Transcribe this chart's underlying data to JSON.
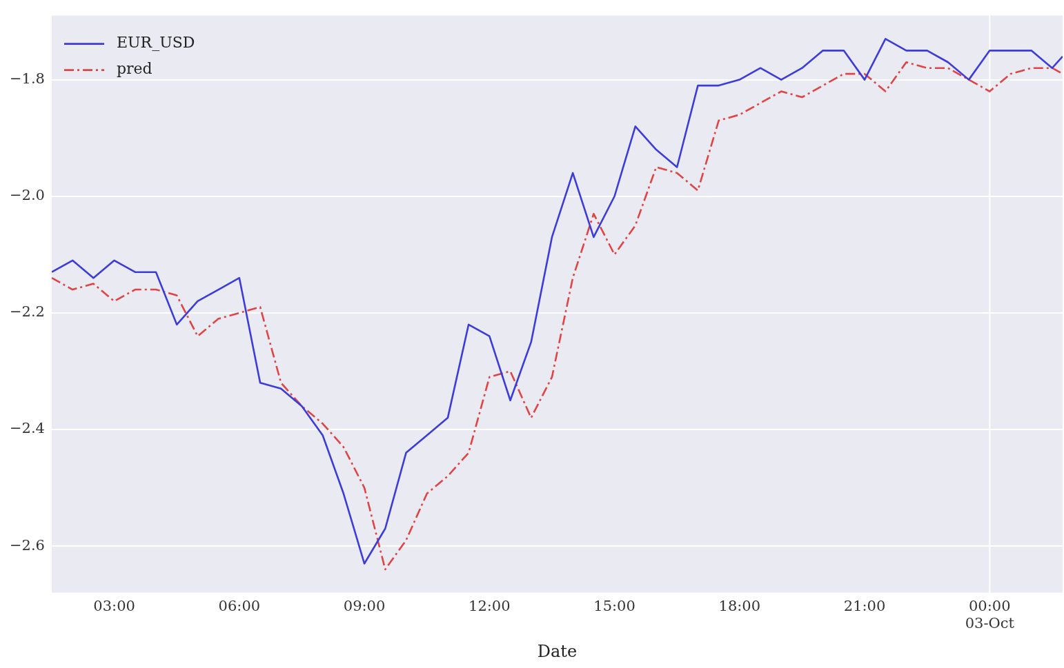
{
  "chart_data": {
    "type": "line",
    "xlabel": "Date",
    "legend": "top left",
    "grid": "y",
    "x": [
      1.5,
      2,
      2.5,
      3,
      3.5,
      4,
      4.5,
      5,
      5.5,
      6,
      6.5,
      7,
      7.5,
      8,
      8.5,
      9,
      9.5,
      10,
      10.5,
      11,
      11.5,
      12,
      12.5,
      13,
      13.5,
      14,
      14.5,
      15,
      15.5,
      16,
      16.5,
      17,
      17.5,
      18,
      18.5,
      19,
      19.5,
      20,
      20.5,
      21,
      21.5,
      22,
      22.5,
      23,
      23.5,
      24,
      24.5,
      25,
      25.5,
      25.75
    ],
    "xlim": [
      1.5,
      25.75
    ],
    "xticks": [
      {
        "value": 3,
        "label": "03:00"
      },
      {
        "value": 6,
        "label": "06:00"
      },
      {
        "value": 9,
        "label": "09:00"
      },
      {
        "value": 12,
        "label": "12:00"
      },
      {
        "value": 15,
        "label": "15:00"
      },
      {
        "value": 18,
        "label": "18:00"
      },
      {
        "value": 21,
        "label": "21:00"
      },
      {
        "value": 24,
        "label": "00:00\n03-Oct"
      }
    ],
    "ylim": [
      -2.68,
      -1.69
    ],
    "yticks": [
      {
        "value": -2.6,
        "label": "−2.6"
      },
      {
        "value": -2.4,
        "label": "−2.4"
      },
      {
        "value": -2.2,
        "label": "−2.2"
      },
      {
        "value": -2.0,
        "label": "−2.0"
      },
      {
        "value": -1.8,
        "label": "−1.8"
      }
    ],
    "ref_lines": [
      {
        "axis": "x",
        "value": 24,
        "color": "#ffffff"
      }
    ],
    "series": [
      {
        "name": "EUR_USD",
        "color": "#3c3cdc",
        "line_style": "solid",
        "values": [
          -2.13,
          -2.11,
          -2.14,
          -2.11,
          -2.13,
          -2.13,
          -2.22,
          -2.18,
          -2.16,
          -2.14,
          -2.32,
          -2.33,
          -2.36,
          -2.41,
          -2.51,
          -2.63,
          -2.57,
          -2.44,
          -2.41,
          -2.38,
          -2.22,
          -2.24,
          -2.35,
          -2.25,
          -2.07,
          -1.96,
          -2.07,
          -2.0,
          -1.88,
          -1.92,
          -1.95,
          -1.81,
          -1.81,
          -1.8,
          -1.78,
          -1.8,
          -1.78,
          -1.75,
          -1.75,
          -1.8,
          -1.73,
          -1.75,
          -1.75,
          -1.77,
          -1.8,
          -1.75,
          -1.75,
          -1.75,
          -1.78,
          -1.76
        ]
      },
      {
        "name": "pred",
        "color": "#e04444",
        "line_style": "dashed",
        "values": [
          -2.14,
          -2.16,
          -2.15,
          -2.18,
          -2.16,
          -2.16,
          -2.17,
          -2.24,
          -2.21,
          -2.2,
          -2.19,
          -2.32,
          -2.36,
          -2.39,
          -2.43,
          -2.5,
          -2.64,
          -2.59,
          -2.51,
          -2.48,
          -2.44,
          -2.31,
          -2.3,
          -2.38,
          -2.31,
          -2.14,
          -2.03,
          -2.1,
          -2.05,
          -1.95,
          -1.96,
          -1.99,
          -1.87,
          -1.86,
          -1.84,
          -1.82,
          -1.83,
          -1.81,
          -1.79,
          -1.79,
          -1.82,
          -1.77,
          -1.78,
          -1.78,
          -1.8,
          -1.82,
          -1.79,
          -1.78,
          -1.78,
          -1.79
        ]
      }
    ]
  }
}
